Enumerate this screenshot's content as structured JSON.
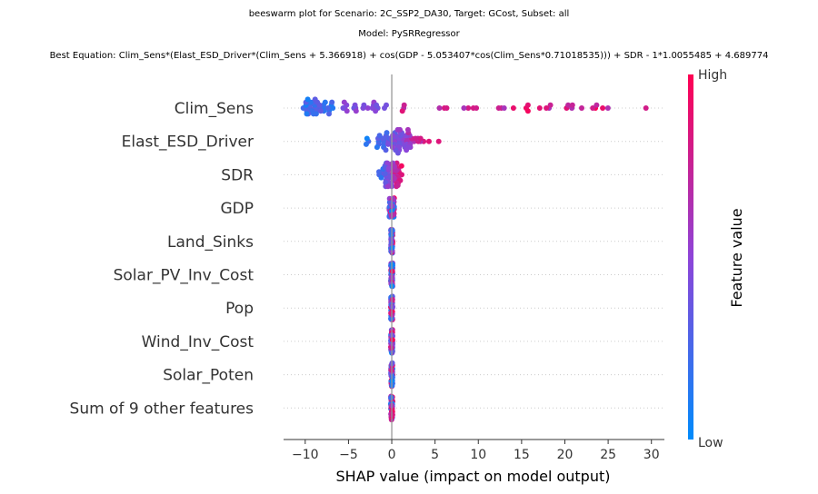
{
  "titles": {
    "line1": "beeswarm plot for Scenario: 2C_SSP2_DA30, Target: GCost, Subset: all",
    "line2": "Model: PySRRegressor",
    "line3": "Best Equation: Clim_Sens*(Elast_ESD_Driver*(Clim_Sens + 5.366918) + cos(GDP - 5.053407*cos(Clim_Sens*0.71018535))) + SDR - 1*1.0055485 + 4.689774"
  },
  "chart_data": {
    "type": "scatter",
    "subtype": "shap-beeswarm",
    "xlabel": "SHAP value (impact on model output)",
    "xlim": [
      -12.5,
      31.5
    ],
    "xticks": [
      -10,
      -5,
      0,
      5,
      10,
      15,
      20,
      25,
      30
    ],
    "zero_line": 0,
    "colorbar": {
      "label": "Feature value",
      "high_label": "High",
      "low_label": "Low",
      "low_color": "#008bfb",
      "mid_color": "#8e44d8",
      "high_color": "#ff0052"
    },
    "features": [
      {
        "name": "Clim_Sens",
        "min": -10.8,
        "max": 29.5,
        "center": -8.5,
        "skew": "long-right",
        "row_spread": 0.35
      },
      {
        "name": "Elast_ESD_Driver",
        "min": -4.0,
        "max": 6.0,
        "center": 0.5,
        "skew": "both",
        "row_spread": 0.35
      },
      {
        "name": "SDR",
        "min": -2.0,
        "max": 1.5,
        "center": 0.0,
        "skew": "both",
        "row_spread": 0.35
      },
      {
        "name": "GDP",
        "min": -0.3,
        "max": 0.3,
        "center": 0.0,
        "skew": "narrow",
        "row_spread": 0.3
      },
      {
        "name": "Land_Sinks",
        "min": -0.1,
        "max": 0.1,
        "center": 0.0,
        "skew": "narrow",
        "row_spread": 0.35
      },
      {
        "name": "Solar_PV_Inv_Cost",
        "min": -0.1,
        "max": 0.1,
        "center": 0.0,
        "skew": "narrow",
        "row_spread": 0.35
      },
      {
        "name": "Pop",
        "min": -0.1,
        "max": 0.1,
        "center": 0.0,
        "skew": "narrow",
        "row_spread": 0.35
      },
      {
        "name": "Wind_Inv_Cost",
        "min": -0.1,
        "max": 0.1,
        "center": 0.0,
        "skew": "narrow",
        "row_spread": 0.35
      },
      {
        "name": "Solar_Poten",
        "min": -0.1,
        "max": 0.1,
        "center": 0.0,
        "skew": "narrow",
        "row_spread": 0.35
      },
      {
        "name": "Sum of 9 other features",
        "min": -0.1,
        "max": 0.1,
        "center": 0.0,
        "skew": "narrow",
        "row_spread": 0.35
      }
    ]
  }
}
